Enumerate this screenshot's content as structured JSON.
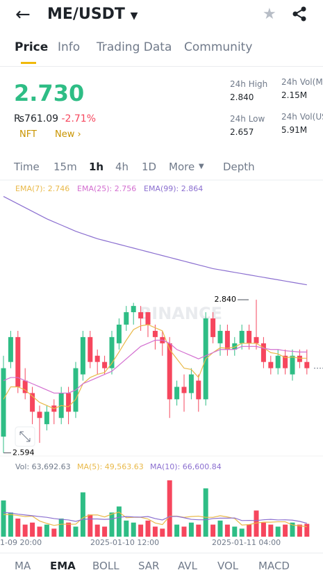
{
  "header": {
    "pair": "ME/USDT"
  },
  "tabs": [
    "Price",
    "Info",
    "Trading Data",
    "Community"
  ],
  "price": {
    "last": "2.730",
    "fiat": "₨761.09",
    "change": "-2.71%",
    "tags": [
      "NFT",
      "New"
    ]
  },
  "stats": [
    {
      "label": "24h High",
      "value": "2.840"
    },
    {
      "label": "24h Low",
      "value": "2.657"
    },
    {
      "label": "24h Vol(M",
      "value": "2.15M"
    },
    {
      "label": "24h Vol(US",
      "value": "5.91M"
    }
  ],
  "intervals": [
    "Time",
    "15m",
    "1h",
    "4h",
    "1D",
    "More",
    "Depth"
  ],
  "chart_data": {
    "type": "candlestick",
    "watermark": "BINANCE",
    "ema_legend": [
      "EMA(7): 2.746",
      "EMA(25): 2.756",
      "EMA(99): 2.864"
    ],
    "ylim": [
      2.562,
      3.029
    ],
    "high_marker": {
      "value": 2.84,
      "label": "2.840"
    },
    "low_marker": {
      "value": 2.594,
      "label": "2.594"
    },
    "last_price": 2.73,
    "up_color": "#2ebd85",
    "down_color": "#f6465d",
    "candles": [
      [
        2.62,
        2.75,
        2.594,
        2.73
      ],
      [
        2.74,
        2.79,
        2.73,
        2.78
      ],
      [
        2.78,
        2.79,
        2.69,
        2.7
      ],
      [
        2.71,
        2.73,
        2.68,
        2.69
      ],
      [
        2.69,
        2.7,
        2.64,
        2.66
      ],
      [
        2.66,
        2.67,
        2.61,
        2.65
      ],
      [
        2.64,
        2.67,
        2.63,
        2.66
      ],
      [
        2.67,
        2.68,
        2.64,
        2.66
      ],
      [
        2.65,
        2.7,
        2.64,
        2.69
      ],
      [
        2.69,
        2.7,
        2.64,
        2.66
      ],
      [
        2.66,
        2.74,
        2.65,
        2.73
      ],
      [
        2.72,
        2.79,
        2.71,
        2.78
      ],
      [
        2.78,
        2.79,
        2.73,
        2.74
      ],
      [
        2.75,
        2.76,
        2.72,
        2.74
      ],
      [
        2.74,
        2.75,
        2.72,
        2.73
      ],
      [
        2.73,
        2.79,
        2.72,
        2.78
      ],
      [
        2.77,
        2.81,
        2.76,
        2.8
      ],
      [
        2.8,
        2.83,
        2.79,
        2.82
      ],
      [
        2.82,
        2.835,
        2.8,
        2.83
      ],
      [
        2.82,
        2.83,
        2.79,
        2.81
      ],
      [
        2.82,
        2.82,
        2.78,
        2.8
      ],
      [
        2.79,
        2.8,
        2.76,
        2.78
      ],
      [
        2.78,
        2.79,
        2.75,
        2.77
      ],
      [
        2.77,
        2.78,
        2.65,
        2.68
      ],
      [
        2.68,
        2.71,
        2.67,
        2.7
      ],
      [
        2.7,
        2.72,
        2.66,
        2.69
      ],
      [
        2.69,
        2.73,
        2.68,
        2.72
      ],
      [
        2.71,
        2.72,
        2.66,
        2.68
      ],
      [
        2.68,
        2.82,
        2.67,
        2.81
      ],
      [
        2.81,
        2.82,
        2.77,
        2.78
      ],
      [
        2.77,
        2.8,
        2.75,
        2.79
      ],
      [
        2.79,
        2.8,
        2.75,
        2.76
      ],
      [
        2.76,
        2.78,
        2.75,
        2.77
      ],
      [
        2.77,
        2.8,
        2.76,
        2.79
      ],
      [
        2.79,
        2.8,
        2.76,
        2.77
      ],
      [
        2.78,
        2.84,
        2.76,
        2.77
      ],
      [
        2.77,
        2.78,
        2.73,
        2.74
      ],
      [
        2.74,
        2.75,
        2.72,
        2.73
      ],
      [
        2.73,
        2.76,
        2.72,
        2.75
      ],
      [
        2.75,
        2.76,
        2.72,
        2.73
      ],
      [
        2.72,
        2.76,
        2.71,
        2.75
      ],
      [
        2.75,
        2.76,
        2.73,
        2.74
      ],
      [
        2.74,
        2.76,
        2.72,
        2.73
      ]
    ],
    "series": [
      {
        "name": "EMA(7)",
        "color": "#e9b949",
        "values": [
          2.68,
          2.7,
          2.7,
          2.695,
          2.685,
          2.675,
          2.67,
          2.665,
          2.67,
          2.668,
          2.68,
          2.705,
          2.715,
          2.72,
          2.723,
          2.738,
          2.756,
          2.775,
          2.792,
          2.798,
          2.8,
          2.795,
          2.79,
          2.76,
          2.745,
          2.73,
          2.728,
          2.715,
          2.745,
          2.755,
          2.763,
          2.762,
          2.764,
          2.77,
          2.77,
          2.77,
          2.763,
          2.755,
          2.753,
          2.747,
          2.748,
          2.746,
          2.746
        ]
      },
      {
        "name": "EMA(25)",
        "color": "#d36ed0",
        "values": [
          2.71,
          2.715,
          2.715,
          2.71,
          2.705,
          2.7,
          2.695,
          2.69,
          2.69,
          2.69,
          2.695,
          2.705,
          2.71,
          2.715,
          2.72,
          2.725,
          2.735,
          2.745,
          2.755,
          2.765,
          2.77,
          2.775,
          2.775,
          2.77,
          2.76,
          2.755,
          2.75,
          2.745,
          2.75,
          2.755,
          2.76,
          2.76,
          2.76,
          2.765,
          2.765,
          2.765,
          2.762,
          2.76,
          2.76,
          2.758,
          2.757,
          2.756,
          2.756
        ]
      },
      {
        "name": "EMA(99)",
        "color": "#8b6fd0",
        "values": [
          3.006,
          3.0,
          2.994,
          2.988,
          2.982,
          2.976,
          2.97,
          2.965,
          2.96,
          2.955,
          2.95,
          2.946,
          2.942,
          2.938,
          2.935,
          2.932,
          2.929,
          2.926,
          2.923,
          2.92,
          2.917,
          2.914,
          2.911,
          2.908,
          2.905,
          2.902,
          2.899,
          2.896,
          2.893,
          2.89,
          2.888,
          2.886,
          2.884,
          2.882,
          2.88,
          2.878,
          2.876,
          2.874,
          2.872,
          2.87,
          2.868,
          2.866,
          2.864
        ]
      }
    ],
    "vol_legend": [
      "Vol: 63,692.63",
      "MA(5): 49,563.63",
      "MA(10): 66,600.84"
    ],
    "vol_ylim": [
      0,
      290000
    ],
    "volumes": [
      180000,
      120000,
      90000,
      60000,
      70000,
      50000,
      60000,
      40000,
      90000,
      70000,
      50000,
      220000,
      110000,
      60000,
      50000,
      120000,
      150000,
      80000,
      70000,
      60000,
      80000,
      50000,
      40000,
      280000,
      60000,
      50000,
      70000,
      60000,
      240000,
      60000,
      80000,
      60000,
      50000,
      40000,
      60000,
      130000,
      70000,
      60000,
      50000,
      60000,
      70000,
      60000,
      63692.63
    ],
    "vol_series": [
      {
        "name": "MA(5)",
        "color": "#e9b949",
        "values": [
          110000,
          110000,
          105000,
          100000,
          102000,
          78000,
          66000,
          56000,
          62000,
          62000,
          62000,
          94000,
          108000,
          108000,
          98000,
          112000,
          122000,
          94000,
          96000,
          96000,
          88000,
          68000,
          60000,
          102000,
          102000,
          96000,
          100000,
          102000,
          96000,
          96000,
          104000,
          98000,
          90000,
          58000,
          60000,
          68000,
          72000,
          72000,
          74000,
          74000,
          58000,
          54000,
          49563.63
        ]
      },
      {
        "name": "MA(10)",
        "color": "#8b6fd0",
        "values": [
          120000,
          118000,
          112000,
          108000,
          104000,
          100000,
          96000,
          90000,
          86000,
          83000,
          76000,
          86000,
          88000,
          88000,
          86000,
          88000,
          96000,
          100000,
          98000,
          97000,
          100000,
          90000,
          83000,
          100000,
          101000,
          94000,
          86000,
          84000,
          84000,
          90000,
          92000,
          92000,
          93000,
          80000,
          81000,
          80000,
          84000,
          86000,
          83000,
          84000,
          82000,
          76000,
          66600.84
        ]
      }
    ],
    "x_labels": [
      "1-09 20:00",
      "2025-01-10 12:00",
      "2025-01-11 04:00"
    ]
  },
  "indicators": [
    "MA",
    "EMA",
    "BOLL",
    "SAR",
    "AVL",
    "VOL",
    "MACD"
  ]
}
